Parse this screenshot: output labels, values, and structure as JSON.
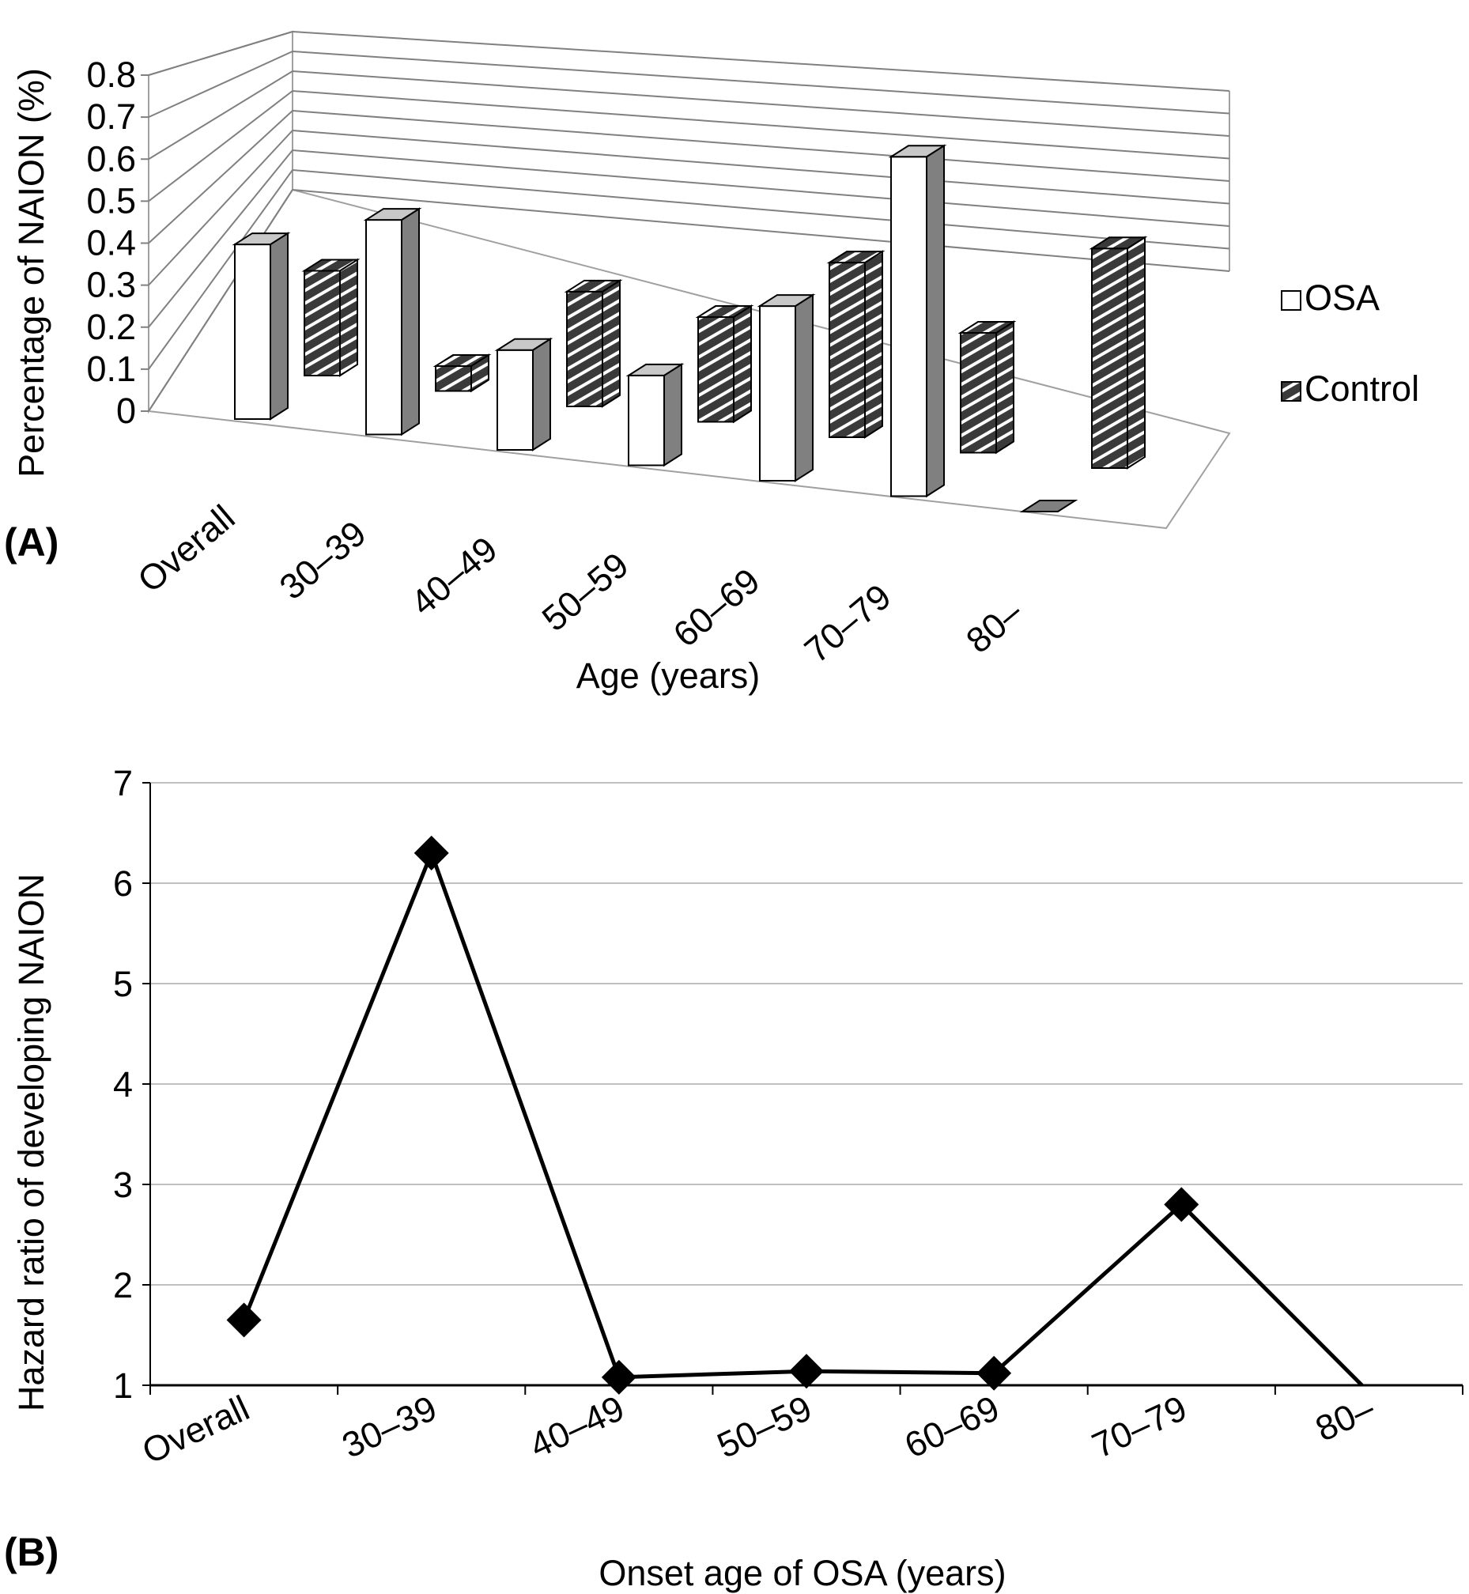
{
  "panels": {
    "a_label": "(A)",
    "b_label": "(B)"
  },
  "colors": {
    "osa_fill": "#ffffff",
    "side_fill": "#808080",
    "top_fill": "#c8c8c8",
    "hatch_dark": "#3a3a3a",
    "line": "#000000",
    "grid": "#c0c0c0"
  },
  "chart_data": [
    {
      "type": "bar",
      "style": "3d-clustered",
      "ylabel": "Percentage of NAION (%)",
      "xlabel": "Age (years)",
      "categories": [
        "Overall",
        "30–39",
        "40–49",
        "50–59",
        "60–69",
        "70–79",
        "80–"
      ],
      "series": [
        {
          "name": "OSA",
          "values": [
            0.35,
            0.43,
            0.2,
            0.18,
            0.35,
            0.68,
            0.0
          ]
        },
        {
          "name": "Control",
          "values": [
            0.21,
            0.05,
            0.23,
            0.21,
            0.35,
            0.24,
            0.44
          ]
        }
      ],
      "yticks": [
        "0",
        "0.1",
        "0.2",
        "0.3",
        "0.4",
        "0.5",
        "0.6",
        "0.7",
        "0.8"
      ],
      "ylim": [
        0,
        0.8
      ],
      "grid": true,
      "legend": "right",
      "legend_entries": [
        "OSA",
        "Control"
      ]
    },
    {
      "type": "line",
      "ylabel": "Hazard ratio of developing NAION",
      "xlabel": "Onset age of OSA (years)",
      "categories": [
        "Overall",
        "30–39",
        "40–49",
        "50–59",
        "60–69",
        "70–79",
        "80–"
      ],
      "values": [
        1.65,
        6.3,
        1.08,
        1.14,
        1.12,
        2.8,
        0.93
      ],
      "yticks": [
        "1",
        "2",
        "3",
        "4",
        "5",
        "6",
        "7"
      ],
      "ylim": [
        1,
        7
      ],
      "grid": true,
      "marker": "diamond"
    }
  ]
}
